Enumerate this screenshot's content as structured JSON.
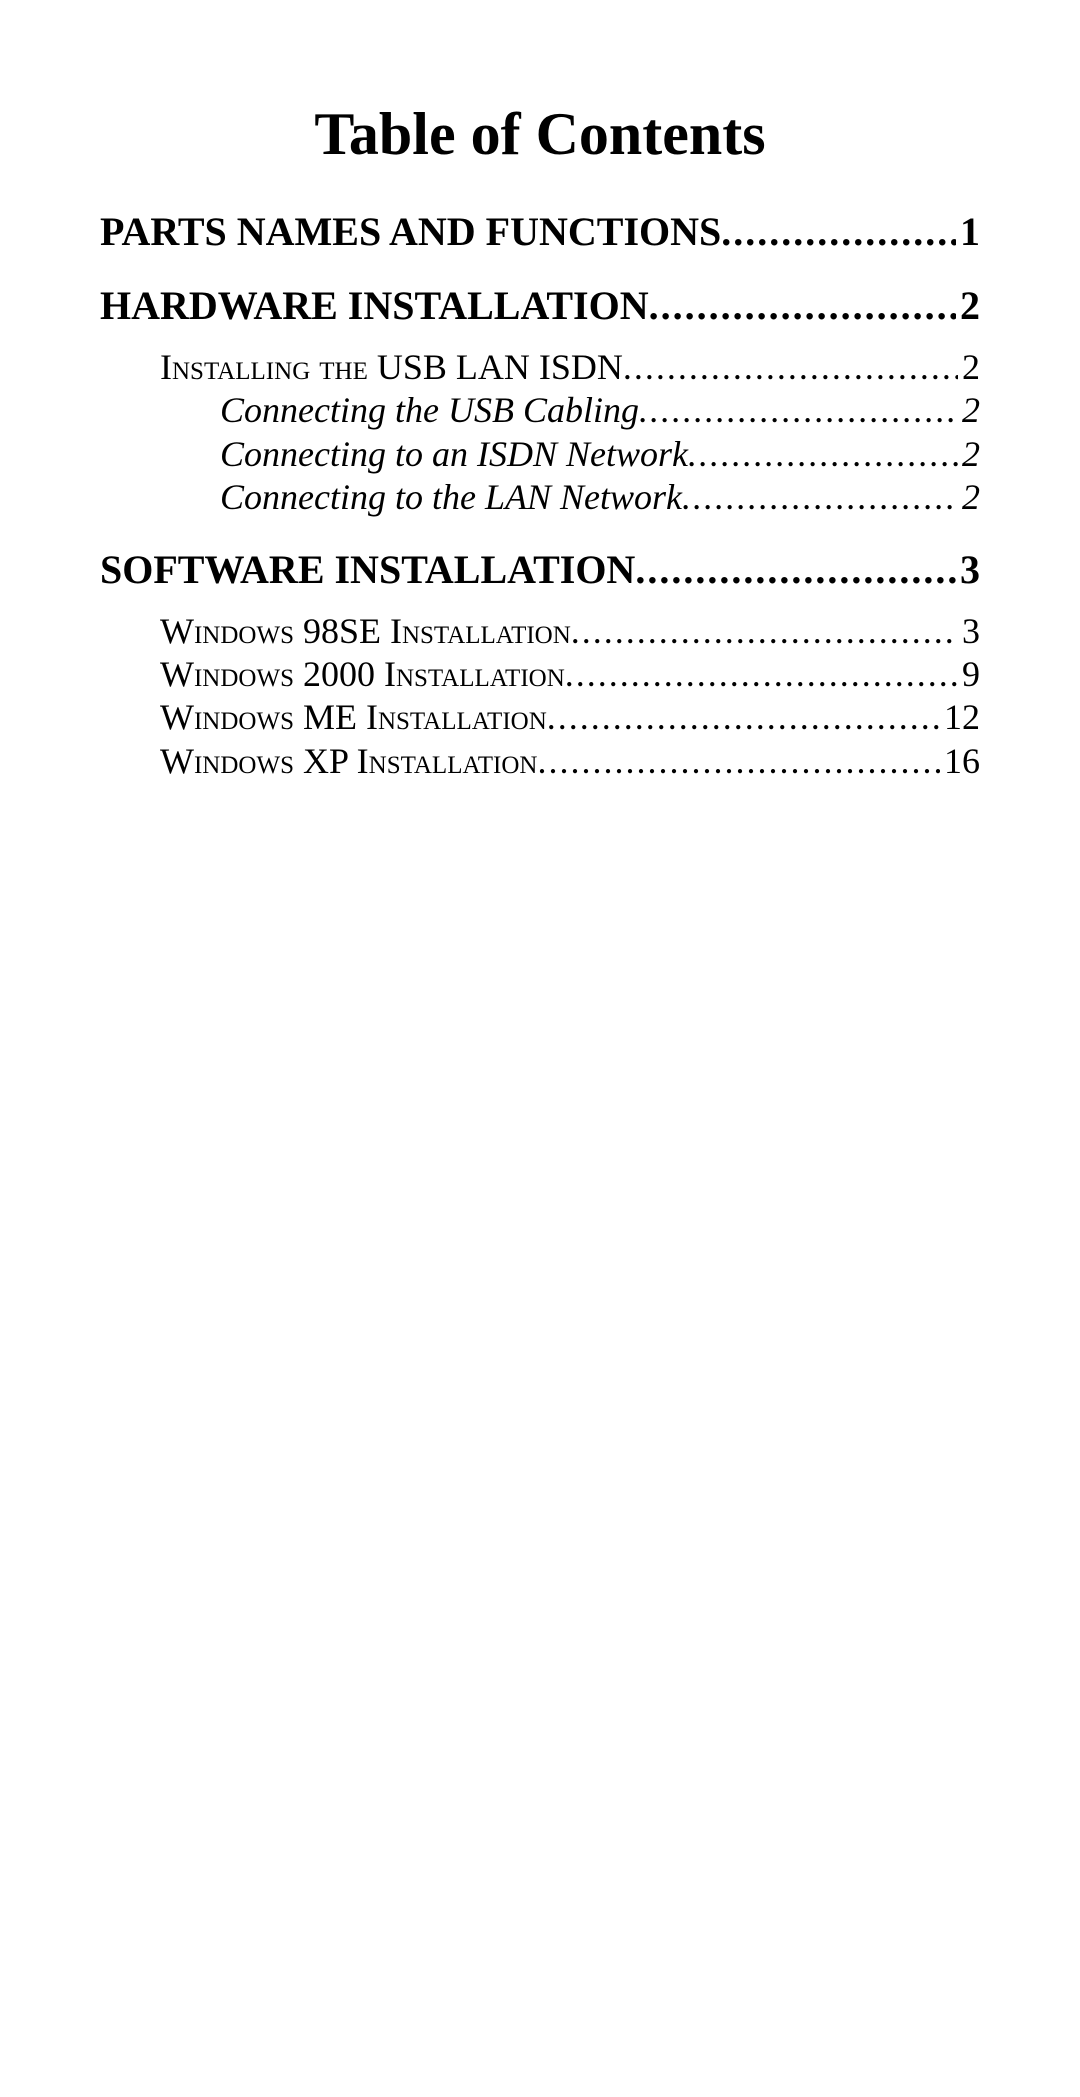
{
  "title": "Table of Contents",
  "colors": {
    "background": "#ffffff",
    "text": "#000000"
  },
  "typography": {
    "family": "Times New Roman",
    "title_fontsize_pt": 45,
    "l1_fontsize_pt": 30,
    "l2_fontsize_pt": 27,
    "l3_fontsize_pt": 27
  },
  "toc": {
    "sections": [
      {
        "heading": {
          "label": "PARTS NAMES AND FUNCTIONS",
          "page": "1"
        }
      },
      {
        "heading": {
          "label": "HARDWARE INSTALLATION",
          "page": "2"
        },
        "subs": [
          {
            "label": "Installing the USB LAN ISDN",
            "page": "2",
            "subs": [
              {
                "label": "Connecting the USB Cabling",
                "page": "2"
              },
              {
                "label": "Connecting to an ISDN Network",
                "page": "2"
              },
              {
                "label": "Connecting to the LAN Network",
                "page": "2"
              }
            ]
          }
        ]
      },
      {
        "heading": {
          "label": "SOFTWARE INSTALLATION",
          "page": "3"
        },
        "subs": [
          {
            "label": "Windows 98SE Installation",
            "page": "3"
          },
          {
            "label": "Windows 2000 Installation",
            "page": "9"
          },
          {
            "label": "Windows ME Installation",
            "page": "12"
          },
          {
            "label": "Windows XP Installation",
            "page": "16"
          }
        ]
      }
    ]
  },
  "leader_char": "."
}
